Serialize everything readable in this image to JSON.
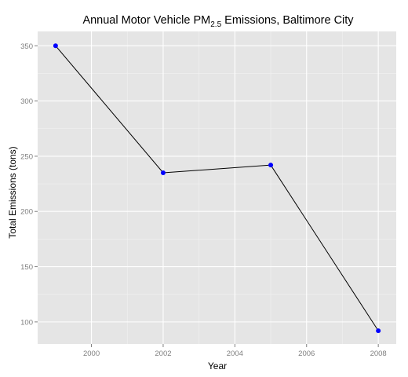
{
  "chart_data": {
    "type": "line",
    "title": {
      "prefix": "Annual Motor Vehicle PM",
      "subscript": "2.5",
      "suffix": " Emissions, Baltimore City"
    },
    "xlabel": "Year",
    "ylabel": "Total Emissions (tons)",
    "x": [
      1999,
      2002,
      2005,
      2008
    ],
    "y": [
      350,
      235,
      242,
      92
    ],
    "xlim": [
      1998.5,
      2008.5
    ],
    "ylim": [
      80,
      363
    ],
    "x_ticks": [
      "2000",
      "2002",
      "2004",
      "2006",
      "2008"
    ],
    "y_ticks": [
      "100",
      "150",
      "200",
      "250",
      "300",
      "350"
    ],
    "grid": true,
    "legend": "none",
    "colors": {
      "panel_background": "#e5e5e5",
      "grid_major": "#ffffff",
      "grid_minor": "#f2f2f2",
      "line": "#000000",
      "points": "#0000ff",
      "tick_label": "#7f7f7f"
    }
  }
}
